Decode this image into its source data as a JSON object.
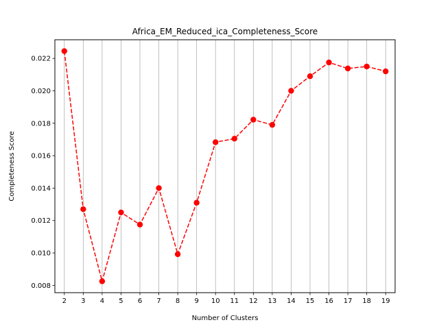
{
  "chart_data": {
    "type": "line",
    "title": "Africa_EM_Reduced_ica_Completeness_Score",
    "xlabel": "Number of Clusters",
    "ylabel": "Completeness Score",
    "x": [
      2,
      3,
      4,
      5,
      6,
      7,
      8,
      9,
      10,
      11,
      12,
      13,
      14,
      15,
      16,
      17,
      18,
      19
    ],
    "series": [
      {
        "values": [
          0.02245,
          0.0127,
          0.00825,
          0.0125,
          0.01175,
          0.014,
          0.00992,
          0.0131,
          0.01683,
          0.01705,
          0.01822,
          0.0179,
          0.02,
          0.0209,
          0.02175,
          0.02138,
          0.0215,
          0.0212
        ],
        "color": "#ff0000",
        "line_style": "dashed",
        "marker": "circle"
      }
    ],
    "xlim": [
      1.5,
      19.5
    ],
    "ylim": [
      0.00755,
      0.02315
    ],
    "yticks": [
      "0.008",
      "0.010",
      "0.012",
      "0.014",
      "0.016",
      "0.018",
      "0.020",
      "0.022"
    ],
    "ytick_values": [
      0.008,
      0.01,
      0.012,
      0.014,
      0.016,
      0.018,
      0.02,
      0.022
    ],
    "grid": "vertical"
  }
}
